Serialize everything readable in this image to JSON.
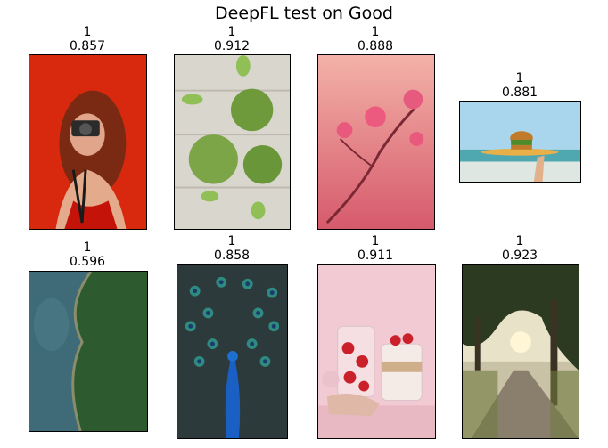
{
  "title": "DeepFL test on Good",
  "panels": [
    {
      "label": "1",
      "score": "0.857",
      "image": "woman-with-camera-red-background-photo"
    },
    {
      "label": "1",
      "score": "0.912",
      "image": "artichokes-on-wooden-table-photo"
    },
    {
      "label": "1",
      "score": "0.888",
      "image": "pink-flowers-branch-photo"
    },
    {
      "label": "1",
      "score": "0.881",
      "image": "hand-holding-burger-beach-photo"
    },
    {
      "label": "1",
      "score": "0.596",
      "image": "aerial-forest-lake-shore-photo"
    },
    {
      "label": "1",
      "score": "0.858",
      "image": "peacock-feathers-photo"
    },
    {
      "label": "1",
      "score": "0.911",
      "image": "strawberry-jars-pink-background-photo"
    },
    {
      "label": "1",
      "score": "0.923",
      "image": "tree-lined-road-sunset-photo"
    }
  ]
}
